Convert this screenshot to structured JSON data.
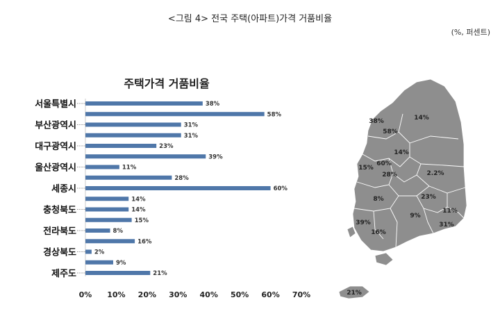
{
  "figure": {
    "caption": "<그림 4> 전국 주택(아파트)가격 거품비율",
    "unit_note": "(%, 퍼센트)"
  },
  "chart_data": {
    "type": "bar",
    "orientation": "horizontal",
    "title": "주택가격 거품비율",
    "bar_color": "#4F77A9",
    "xlim": [
      0,
      70
    ],
    "xticks": [
      0,
      10,
      20,
      30,
      40,
      50,
      60,
      70
    ],
    "tick_labels": [
      "0%",
      "10%",
      "20%",
      "30%",
      "40%",
      "50%",
      "60%",
      "70%"
    ],
    "values": [
      38,
      58,
      31,
      31,
      23,
      39,
      11,
      28,
      60,
      14,
      14,
      15,
      8,
      16,
      2,
      9,
      21
    ],
    "value_labels": [
      "38%",
      "58%",
      "31%",
      "31%",
      "23%",
      "39%",
      "11%",
      "28%",
      "60%",
      "14%",
      "14%",
      "15%",
      "8%",
      "16%",
      "2%",
      "9%",
      "21%"
    ],
    "group_labels": [
      {
        "label": "서울특별시",
        "bar_index": 0
      },
      {
        "label": "부산광역시",
        "bar_index": 2
      },
      {
        "label": "대구광역시",
        "bar_index": 4
      },
      {
        "label": "울산광역시",
        "bar_index": 6
      },
      {
        "label": "세종시",
        "bar_index": 8
      },
      {
        "label": "충청북도",
        "bar_index": 10
      },
      {
        "label": "전라북도",
        "bar_index": 12
      },
      {
        "label": "경상북도",
        "bar_index": 14
      },
      {
        "label": "제주도",
        "bar_index": 16
      }
    ],
    "grid": false
  },
  "map": {
    "fill_color": "#8E8E8E",
    "labels": [
      "38%",
      "58%",
      "14%",
      "14%",
      "60%",
      "15%",
      "28%",
      "2.2%",
      "8%",
      "23%",
      "11%",
      "9%",
      "39%",
      "16%",
      "31%",
      "21%"
    ]
  }
}
